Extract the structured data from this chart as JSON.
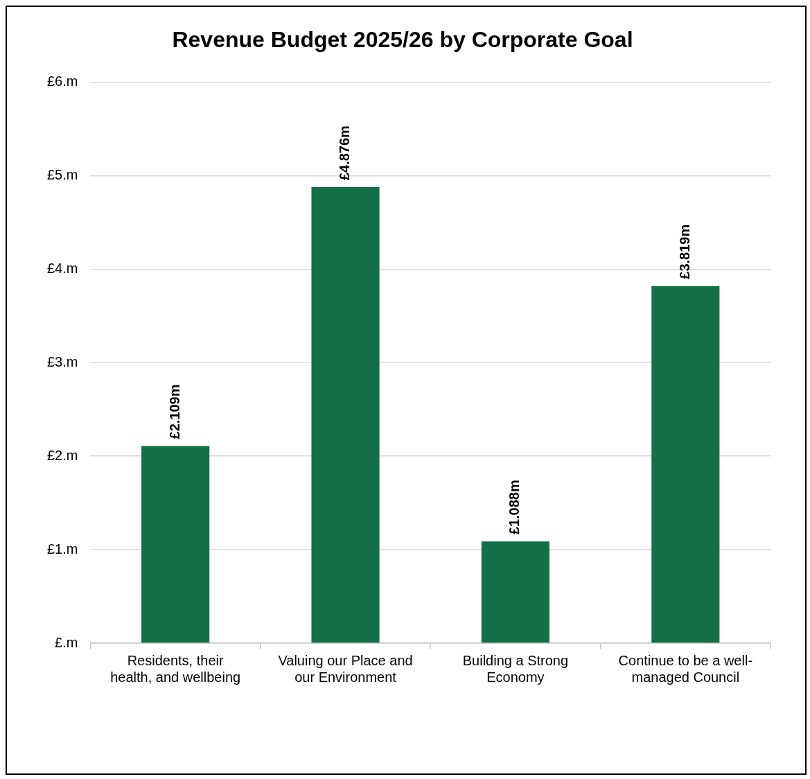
{
  "chart_data": {
    "type": "bar",
    "title": "Revenue Budget 2025/26 by Corporate Goal",
    "categories": [
      "Residents, their health, and wellbeing",
      "Valuing our Place and our Environment",
      "Building a Strong Economy",
      "Continue to be a well-managed Council"
    ],
    "values": [
      2.109,
      4.876,
      1.088,
      3.819
    ],
    "value_labels": [
      "£2.109m",
      "£4.876m",
      "£1.088m",
      "£3.819m"
    ],
    "color": "#136f47",
    "ylim": [
      0,
      6
    ],
    "yticks": [
      {
        "value": 0,
        "label": "£.m"
      },
      {
        "value": 1,
        "label": "£1.m"
      },
      {
        "value": 2,
        "label": "£2.m"
      },
      {
        "value": 3,
        "label": "£3.m"
      },
      {
        "value": 4,
        "label": "£4.m"
      },
      {
        "value": 5,
        "label": "£5.m"
      },
      {
        "value": 6,
        "label": "£6.m"
      }
    ],
    "grid": "y",
    "legend": false
  }
}
